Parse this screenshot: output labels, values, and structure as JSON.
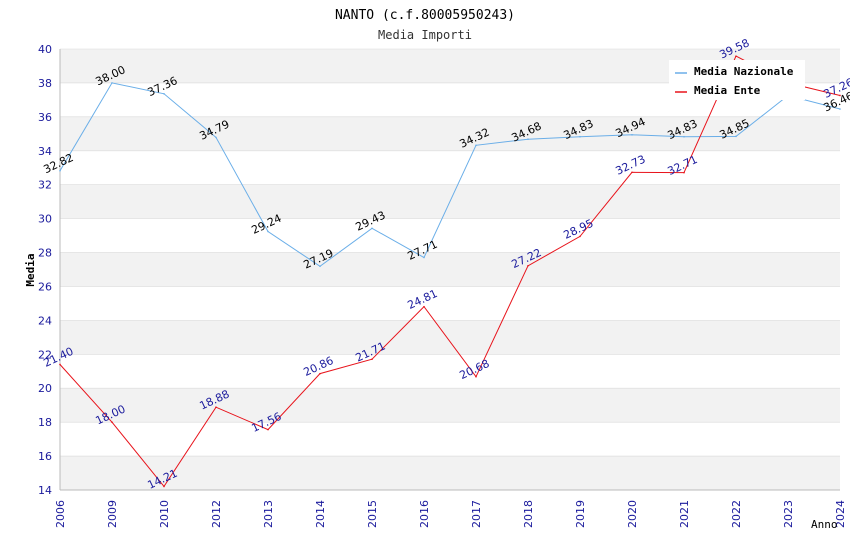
{
  "chart_data": {
    "type": "line",
    "title": "NANTO (c.f.80005950243)",
    "subtitle": "Media Importi",
    "xlabel": "Anno",
    "ylabel": "Media",
    "categories": [
      "2006",
      "2009",
      "2010",
      "2012",
      "2013",
      "2014",
      "2015",
      "2016",
      "2017",
      "2018",
      "2019",
      "2020",
      "2021",
      "2022",
      "2023",
      "2024"
    ],
    "ylim": [
      14,
      40
    ],
    "yticks": [
      "14",
      "16",
      "18",
      "20",
      "22",
      "24",
      "26",
      "28",
      "30",
      "32",
      "34",
      "36",
      "38",
      "40"
    ],
    "legend_position": "top-right",
    "series": [
      {
        "name": "Media Nazionale",
        "color": "#6aaee8",
        "label_color": "#000000",
        "values": [
          32.82,
          38.0,
          37.36,
          34.79,
          29.24,
          27.19,
          29.43,
          27.71,
          34.32,
          34.68,
          34.83,
          34.94,
          34.83,
          34.85,
          37.26,
          36.46
        ],
        "labels": [
          "32.82",
          "38.00",
          "37.36",
          "34.79",
          "29.24",
          "27.19",
          "29.43",
          "27.71",
          "34.32",
          "34.68",
          "34.83",
          "34.94",
          "34.83",
          "34.85",
          "",
          "36.46"
        ]
      },
      {
        "name": "Media Ente",
        "color": "#e8131b",
        "label_color": "#1a1a9c",
        "values": [
          21.4,
          18.0,
          14.21,
          18.88,
          17.56,
          20.86,
          21.71,
          24.81,
          20.68,
          27.22,
          28.95,
          32.73,
          32.71,
          39.58,
          38.0,
          37.26
        ],
        "labels": [
          "21.40",
          "18.00",
          "14.21",
          "18.88",
          "17.56",
          "20.86",
          "21.71",
          "24.81",
          "20.68",
          "27.22",
          "28.95",
          "32.73",
          "32.71",
          "39.58",
          "",
          "37.26"
        ]
      }
    ],
    "colors": {
      "axis_tick": "#1a1a9c",
      "band": "#f2f2f2",
      "grid": "#d9d9d9"
    }
  }
}
